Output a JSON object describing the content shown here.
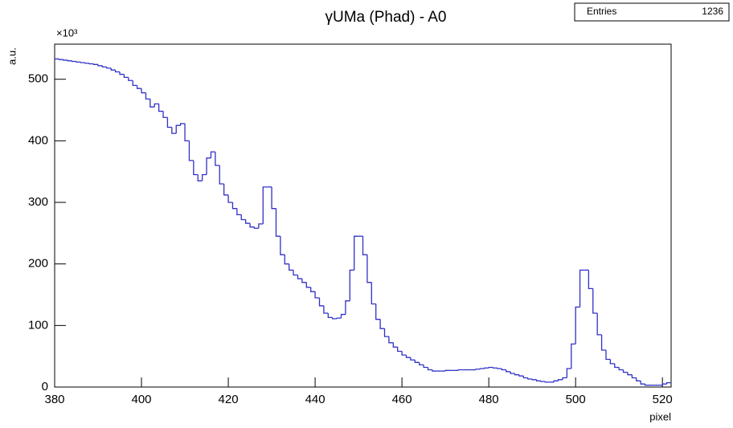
{
  "chart_data": {
    "type": "histogram",
    "title": "γUMa (Phad) - A0",
    "stats_label": "Entries",
    "stats_value": "1236",
    "y_label": "a.u.",
    "y_exponent": "×10³",
    "x_label": "pixel",
    "color": "#3030c8",
    "xlim": [
      380,
      522
    ],
    "ylim": [
      0,
      557
    ],
    "xticks": [
      380,
      400,
      420,
      440,
      460,
      480,
      500,
      520
    ],
    "yticks": [
      0,
      100,
      200,
      300,
      400,
      500
    ],
    "bins": [
      380,
      381,
      382,
      383,
      384,
      385,
      386,
      387,
      388,
      389,
      390,
      391,
      392,
      393,
      394,
      395,
      396,
      397,
      398,
      399,
      400,
      401,
      402,
      403,
      404,
      405,
      406,
      407,
      408,
      409,
      410,
      411,
      412,
      413,
      414,
      415,
      416,
      417,
      418,
      419,
      420,
      421,
      422,
      423,
      424,
      425,
      426,
      427,
      428,
      429,
      430,
      431,
      432,
      433,
      434,
      435,
      436,
      437,
      438,
      439,
      440,
      441,
      442,
      443,
      444,
      445,
      446,
      447,
      448,
      449,
      450,
      451,
      452,
      453,
      454,
      455,
      456,
      457,
      458,
      459,
      460,
      461,
      462,
      463,
      464,
      465,
      466,
      467,
      468,
      469,
      470,
      471,
      472,
      473,
      474,
      475,
      476,
      477,
      478,
      479,
      480,
      481,
      482,
      483,
      484,
      485,
      486,
      487,
      488,
      489,
      490,
      491,
      492,
      493,
      494,
      495,
      496,
      497,
      498,
      499,
      500,
      501,
      502,
      503,
      504,
      505,
      506,
      507,
      508,
      509,
      510,
      511,
      512,
      513,
      514,
      515,
      516,
      517,
      518,
      519,
      520,
      521,
      522
    ],
    "values": [
      533,
      532,
      531,
      530,
      529,
      528,
      527,
      526,
      525,
      524,
      522,
      520,
      518,
      515,
      512,
      508,
      503,
      498,
      490,
      485,
      478,
      468,
      455,
      460,
      448,
      438,
      422,
      412,
      425,
      428,
      400,
      368,
      345,
      335,
      345,
      372,
      382,
      360,
      330,
      312,
      300,
      290,
      280,
      272,
      266,
      260,
      258,
      265,
      325,
      325,
      290,
      245,
      215,
      200,
      190,
      182,
      176,
      170,
      162,
      155,
      145,
      132,
      120,
      113,
      111,
      112,
      118,
      140,
      190,
      245,
      245,
      215,
      170,
      135,
      110,
      95,
      82,
      72,
      65,
      58,
      52,
      48,
      44,
      40,
      36,
      32,
      28,
      26,
      26,
      26,
      27,
      27,
      27,
      28,
      28,
      28,
      28,
      29,
      30,
      31,
      32,
      31,
      30,
      28,
      25,
      22,
      20,
      18,
      15,
      13,
      12,
      10,
      9,
      8,
      8,
      10,
      12,
      15,
      30,
      70,
      130,
      190,
      190,
      160,
      120,
      85,
      60,
      45,
      38,
      32,
      28,
      24,
      20,
      15,
      10,
      5,
      3,
      3,
      3,
      3,
      5,
      7
    ]
  }
}
